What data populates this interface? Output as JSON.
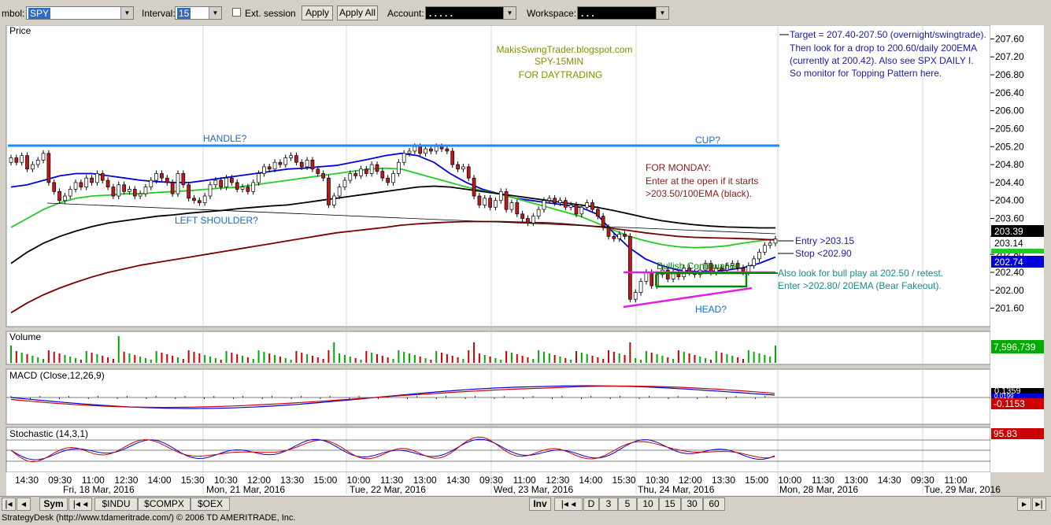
{
  "toolbar": {
    "symbol_label": "mbol:",
    "symbol_value": "SPY",
    "interval_label": "Interval:",
    "interval_value": "15",
    "ext_session_label": "Ext. session",
    "apply_label": "Apply",
    "apply_all_label": "Apply All",
    "account_label": "Account:",
    "account_value": ". . .  .  .",
    "workspace_label": "Workspace:",
    "workspace_value": ". . ."
  },
  "panes": {
    "price_title": "Price",
    "volume_title": "Volume",
    "macd_title": "MACD (Close,12,26,9)",
    "stoch_title": "Stochastic (14,3,1)"
  },
  "annotations": {
    "blog": "MakisSwingTrader.blogspot.com",
    "symbol_tf": "SPY-15MIN",
    "purpose": "FOR DAYTRADING",
    "handle": "HANDLE?",
    "cup": "CUP?",
    "left_shoulder": "LEFT SHOULDER?",
    "head": "HEAD?",
    "bullish": "Bullish Continuation",
    "target_lines": [
      "Target = 207.40-207.50 (overnight/swingtrade).",
      "Then look for a drop to 200.60/daily 200EMA",
      "(currently at 200.42). Also see SPX DAILY I.",
      "So monitor for Topping Pattern here."
    ],
    "monday_lines": [
      "FOR MONDAY:",
      "Enter at the open if it starts",
      ">203.50/100EMA (black)."
    ],
    "entry": "Entry >203.15",
    "stop": "Stop <202.90",
    "bull_lines": [
      "Also look for bull play at 202.50 / retest.",
      "Enter  >202.80/ 20EMA (Bear Fakeout)."
    ]
  },
  "value_badges": {
    "price_close": "203.14",
    "ema100": "203.39",
    "ema20": "202.74",
    "volume": "7,596,739",
    "macd_top": "0.1359",
    "macd_mid": "0.0199",
    "macd_signal": "-0.1153",
    "stoch": "95.83"
  },
  "colors": {
    "ema20": "#0000dd",
    "ema50": "#22cc22",
    "ema100": "#000000",
    "ema200": "#7a0000",
    "trendline_blue": "#1a8cff",
    "magenta": "#e020e0",
    "green_box": "#008800",
    "up_vol": "#00aa00",
    "down_vol": "#cc0000"
  },
  "chart_data": {
    "type": "candlestick",
    "symbol": "SPY",
    "interval": "15",
    "price_axis_ticks": [
      "207.60",
      "207.20",
      "206.80",
      "206.40",
      "206.00",
      "205.60",
      "205.20",
      "204.80",
      "204.40",
      "204.00",
      "203.60",
      "203.20",
      "202.80",
      "202.40",
      "202.00",
      "201.60"
    ],
    "ylim": [
      201.4,
      207.8
    ],
    "time_labels": [
      "14:30",
      "09:30",
      "11:00",
      "12:30",
      "14:00",
      "15:30",
      "10:30",
      "12:00",
      "13:30",
      "15:00",
      "10:00",
      "11:30",
      "13:00",
      "14:30",
      "09:30",
      "11:00",
      "12:30",
      "14:00",
      "15:30",
      "10:30",
      "12:00",
      "13:30",
      "15:00",
      "10:00",
      "11:30",
      "13:00",
      "14:30",
      "09:30",
      "11:00"
    ],
    "date_labels": [
      "Fri, 18 Mar, 2016",
      "Mon, 21 Mar, 2016",
      "Tue, 22 Mar, 2016",
      "Wed, 23 Mar, 2016",
      "Thu, 24 Mar, 2016",
      "Mon, 28 Mar, 2016",
      "Tue, 29 Mar, 2016"
    ],
    "close": [
      204.95,
      204.85,
      205.0,
      204.7,
      204.8,
      204.9,
      205.05,
      204.4,
      204.2,
      204.0,
      204.1,
      204.25,
      204.4,
      204.3,
      204.5,
      204.4,
      204.6,
      204.45,
      204.3,
      204.1,
      204.35,
      204.2,
      204.25,
      204.1,
      204.15,
      204.3,
      204.45,
      204.6,
      204.5,
      204.4,
      204.15,
      204.6,
      204.35,
      204.05,
      204.0,
      203.95,
      204.1,
      204.35,
      204.45,
      204.3,
      204.5,
      204.4,
      204.25,
      204.3,
      204.2,
      204.4,
      204.6,
      204.75,
      204.7,
      204.85,
      204.8,
      204.95,
      205.0,
      204.85,
      204.75,
      204.9,
      204.7,
      204.6,
      204.5,
      203.9,
      204.1,
      204.3,
      204.45,
      204.6,
      204.55,
      204.7,
      204.6,
      204.8,
      204.65,
      204.5,
      204.4,
      204.6,
      204.85,
      205.05,
      205.1,
      205.2,
      205.05,
      205.15,
      205.1,
      205.2,
      205.15,
      205.1,
      204.8,
      204.7,
      204.75,
      204.5,
      204.1,
      203.9,
      204.05,
      203.85,
      204.0,
      204.2,
      203.8,
      203.95,
      203.7,
      203.6,
      203.5,
      203.65,
      203.8,
      204.0,
      204.05,
      203.95,
      204.0,
      203.85,
      203.9,
      203.7,
      203.85,
      203.95,
      203.8,
      203.65,
      203.4,
      203.2,
      203.15,
      203.25,
      203.2,
      201.8,
      201.95,
      202.2,
      202.4,
      202.1,
      202.35,
      202.45,
      202.25,
      202.4,
      202.3,
      202.5,
      202.4,
      202.35,
      202.45,
      202.6,
      202.4,
      202.5,
      202.45,
      202.55,
      202.6,
      202.5,
      202.4,
      202.55,
      202.7,
      202.85,
      203.0,
      203.05,
      203.14
    ],
    "series": [
      {
        "name": "20EMA",
        "values": [
          204.3,
          204.35,
          204.45,
          204.55,
          204.6,
          204.6,
          204.55,
          204.5,
          204.45,
          204.42,
          204.4,
          204.4,
          204.45,
          204.5,
          204.55,
          204.6,
          204.65,
          204.7,
          204.72,
          204.75,
          204.78,
          204.85,
          204.92,
          205.0,
          205.05,
          205.0,
          204.85,
          204.6,
          204.4,
          204.25,
          204.15,
          204.05,
          204.0,
          203.95,
          203.9,
          203.85,
          203.7,
          203.3,
          202.95,
          202.7,
          202.55,
          202.45,
          202.42,
          202.42,
          202.45,
          202.5,
          202.6,
          202.74
        ]
      },
      {
        "name": "50EMA",
        "values": [
          203.4,
          203.6,
          203.8,
          203.95,
          204.05,
          204.1,
          204.12,
          204.15,
          204.15,
          204.18,
          204.2,
          204.22,
          204.25,
          204.28,
          204.3,
          204.35,
          204.4,
          204.45,
          204.5,
          204.55,
          204.6,
          204.65,
          204.7,
          204.72,
          204.7,
          204.6,
          204.5,
          204.4,
          204.3,
          204.22,
          204.15,
          204.05,
          203.95,
          203.85,
          203.75,
          203.65,
          203.5,
          203.35,
          203.2,
          203.1,
          203.02,
          202.97,
          202.95,
          202.96,
          202.99,
          203.05,
          203.1,
          203.14
        ]
      },
      {
        "name": "100EMA",
        "values": [
          202.6,
          202.85,
          203.05,
          203.2,
          203.32,
          203.42,
          203.5,
          203.55,
          203.6,
          203.65,
          203.68,
          203.72,
          203.75,
          203.78,
          203.82,
          203.85,
          203.88,
          203.9,
          203.95,
          204.0,
          204.05,
          204.1,
          204.15,
          204.2,
          204.25,
          204.3,
          204.32,
          204.3,
          204.25,
          204.2,
          204.15,
          204.1,
          204.05,
          204.0,
          203.95,
          203.9,
          203.85,
          203.78,
          203.7,
          203.62,
          203.55,
          203.5,
          203.46,
          203.43,
          203.41,
          203.4,
          203.39,
          203.39
        ]
      },
      {
        "name": "200EMA",
        "values": [
          201.5,
          201.72,
          201.9,
          202.05,
          202.18,
          202.3,
          202.4,
          202.48,
          202.56,
          202.62,
          202.68,
          202.74,
          202.8,
          202.86,
          202.92,
          202.98,
          203.04,
          203.1,
          203.16,
          203.22,
          203.28,
          203.32,
          203.36,
          203.4,
          203.45,
          203.48,
          203.5,
          203.52,
          203.53,
          203.53,
          203.53,
          203.52,
          203.51,
          203.5,
          203.48,
          203.45,
          203.42,
          203.38,
          203.33,
          203.28,
          203.24,
          203.2,
          203.18,
          203.17,
          203.16,
          203.15,
          203.14,
          203.12
        ]
      }
    ]
  }
}
